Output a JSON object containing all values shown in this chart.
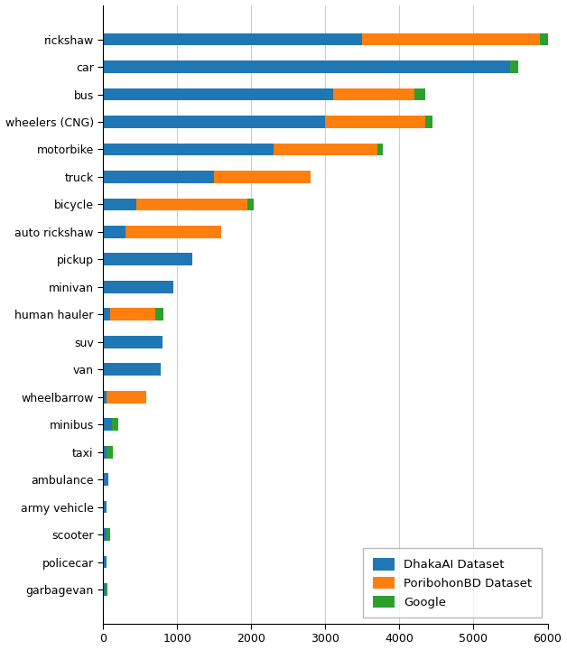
{
  "categories": [
    "rickshaw",
    "car",
    "bus",
    "wheelers (CNG)",
    "motorbike",
    "truck",
    "bicycle",
    "auto rickshaw",
    "pickup",
    "minivan",
    "human hauler",
    "suv",
    "van",
    "wheelbarrow",
    "minibus",
    "taxi",
    "ambulance",
    "army vehicle",
    "scooter",
    "policecar",
    "garbagevan"
  ],
  "dhaka": [
    3500,
    5500,
    3100,
    3000,
    2300,
    1500,
    450,
    300,
    1200,
    950,
    100,
    800,
    780,
    50,
    120,
    50,
    75,
    50,
    45,
    45,
    30
  ],
  "poribon": [
    2400,
    0,
    1100,
    1350,
    1400,
    1300,
    1500,
    1300,
    0,
    0,
    600,
    0,
    0,
    530,
    0,
    0,
    0,
    0,
    0,
    0,
    0
  ],
  "google": [
    100,
    100,
    150,
    100,
    80,
    0,
    80,
    0,
    0,
    0,
    120,
    0,
    0,
    0,
    80,
    80,
    0,
    0,
    50,
    0,
    30
  ],
  "colors": {
    "dhaka": "#1f77b4",
    "poribon": "#ff7f0e",
    "google": "#2ca02c"
  },
  "legend_labels": [
    "DhakaAI Dataset",
    "PoribohonBD Dataset",
    "Google"
  ],
  "xlim": [
    0,
    6000
  ],
  "xticks": [
    0,
    1000,
    2000,
    3000,
    4000,
    5000,
    6000
  ],
  "figsize": [
    6.28,
    7.2
  ],
  "dpi": 100,
  "bar_height": 0.45
}
